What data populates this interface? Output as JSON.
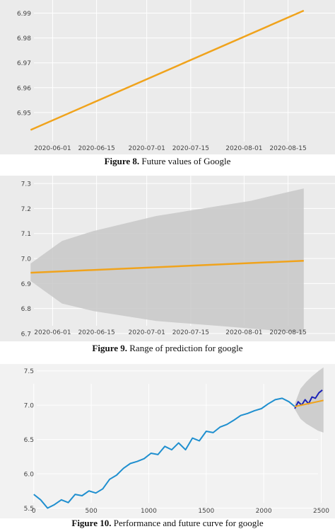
{
  "figures": [
    {
      "caption_label": "Figure 8.",
      "caption_text": " Future values of Google"
    },
    {
      "caption_label": "Figure 9.",
      "caption_text": " Range of prediction for google"
    },
    {
      "caption_label": "Figure 10.",
      "caption_text": " Performance and future curve for google"
    }
  ],
  "colors": {
    "panel_bg": "#ebebeb",
    "grid": "#ffffff",
    "forecast": "#f0a31c",
    "band": "#c8c8c8",
    "history": "#1f8fcf",
    "recent": "#1b22b8"
  },
  "chart_data": [
    {
      "type": "line",
      "title": "",
      "xlabel": "",
      "ylabel": "",
      "x_ticks": [
        "2020-06-01",
        "2020-06-15",
        "2020-07-01",
        "2020-07-15",
        "2020-08-01",
        "2020-08-15"
      ],
      "y_ticks": [
        "6.95",
        "6.96",
        "6.97",
        "6.98",
        "6.99"
      ],
      "xlim": [
        "2020-05-22",
        "2020-08-25"
      ],
      "ylim": [
        6.94,
        6.993
      ],
      "grid": true,
      "series": [
        {
          "x": [
            "2020-05-25",
            "2020-08-20"
          ],
          "values": [
            6.943,
            6.991
          ]
        }
      ]
    },
    {
      "type": "area",
      "title": "",
      "xlabel": "",
      "ylabel": "",
      "x_ticks": [
        "2020-06-01",
        "2020-06-15",
        "2020-07-01",
        "2020-07-15",
        "2020-08-01",
        "2020-08-15"
      ],
      "y_ticks": [
        "7.3",
        "7.2",
        "7.1",
        "7.0",
        "6.9",
        "6.8",
        "6.7"
      ],
      "xlim": [
        "2020-05-22",
        "2020-08-25"
      ],
      "ylim": [
        6.68,
        7.32
      ],
      "grid": true,
      "series": [
        {
          "x": [
            "2020-05-25",
            "2020-08-20"
          ],
          "values": [
            6.943,
            6.991
          ]
        }
      ],
      "band": {
        "x": [
          "2020-05-25",
          "2020-06-04",
          "2020-06-14",
          "2020-06-24",
          "2020-07-04",
          "2020-07-14",
          "2020-07-24",
          "2020-08-03",
          "2020-08-13",
          "2020-08-20"
        ],
        "upper": [
          6.98,
          7.07,
          7.11,
          7.14,
          7.17,
          7.19,
          7.21,
          7.23,
          7.26,
          7.28
        ],
        "lower": [
          6.91,
          6.82,
          6.79,
          6.77,
          6.75,
          6.74,
          6.73,
          6.72,
          6.71,
          6.7
        ]
      }
    },
    {
      "type": "line",
      "title": "",
      "xlabel": "",
      "ylabel": "",
      "x_ticks": [
        "0",
        "500",
        "1000",
        "1500",
        "2000",
        "2500"
      ],
      "y_ticks": [
        "7.5",
        "7.0",
        "6.5",
        "6.0",
        "5.5"
      ],
      "xlim": [
        -60,
        2620
      ],
      "ylim": [
        5.35,
        7.6
      ],
      "grid": true,
      "series": [
        {
          "x": [
            0,
            60,
            120,
            180,
            240,
            300,
            360,
            420,
            480,
            540,
            600,
            660,
            720,
            780,
            840,
            900,
            960,
            1020,
            1080,
            1140,
            1200,
            1260,
            1320,
            1380,
            1440,
            1500,
            1560,
            1620,
            1680,
            1740,
            1800,
            1860,
            1920,
            1980,
            2040,
            2100,
            2160,
            2220,
            2270
          ],
          "values": [
            5.7,
            5.62,
            5.5,
            5.55,
            5.62,
            5.58,
            5.7,
            5.68,
            5.75,
            5.72,
            5.78,
            5.92,
            5.98,
            6.08,
            6.15,
            6.18,
            6.22,
            6.3,
            6.28,
            6.4,
            6.35,
            6.45,
            6.35,
            6.52,
            6.48,
            6.62,
            6.6,
            6.68,
            6.72,
            6.78,
            6.85,
            6.88,
            6.92,
            6.95,
            7.02,
            7.08,
            7.1,
            7.05,
            6.98
          ]
        },
        {
          "x": [
            2270,
            2300,
            2330,
            2360,
            2390,
            2420,
            2450,
            2480,
            2510
          ],
          "values": [
            6.95,
            7.05,
            7.0,
            7.08,
            7.02,
            7.12,
            7.1,
            7.18,
            7.22
          ]
        },
        {
          "x": [
            2270,
            2520
          ],
          "values": [
            6.98,
            7.07
          ]
        }
      ],
      "band": {
        "x": [
          2270,
          2320,
          2370,
          2420,
          2470,
          2520
        ],
        "upper": [
          7.02,
          7.24,
          7.34,
          7.42,
          7.49,
          7.55
        ],
        "lower": [
          6.94,
          6.8,
          6.73,
          6.68,
          6.63,
          6.6
        ]
      }
    }
  ]
}
